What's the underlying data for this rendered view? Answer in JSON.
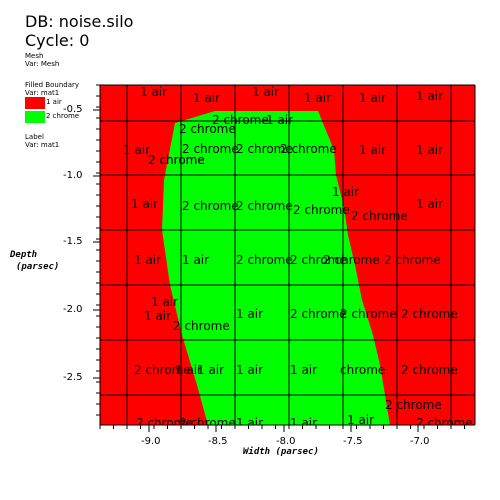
{
  "header": {
    "db": "DB: noise.silo",
    "cycle": "Cycle: 0"
  },
  "legend": {
    "mesh": [
      "Mesh",
      "Var: Mesh"
    ],
    "boundary": [
      "Filled Boundary",
      "Var: mat1"
    ],
    "items": [
      "1 air",
      "2 chrome"
    ],
    "label": [
      "Label",
      "Var: mat1"
    ]
  },
  "colors": {
    "air": "#ff0000",
    "chrome": "#00ff00",
    "grid": "#000000"
  },
  "axes": {
    "x_title": "Width (parsec)",
    "y_title": [
      "Depth",
      "(parsec)"
    ],
    "x_ticks": [
      "-9.0",
      "-8.5",
      "-8.0",
      "-7.5",
      "-7.0"
    ],
    "y_ticks": [
      "-0.5",
      "-1.0",
      "-1.5",
      "-2.0",
      "-2.5"
    ]
  },
  "plot_labels": [
    "1 air",
    "1 air",
    "1 air",
    "1 air",
    "1 air",
    "1 air",
    "2 chrome",
    "2 chrome",
    "1 air",
    "1 air",
    "2 chrome",
    "2 chrome",
    "2 chrome",
    "2 chrome",
    "1 air",
    "1 air",
    "2 chrome",
    "1 air",
    "1 air",
    "2 chrome",
    "2 chrome",
    "2 chrome",
    "2 chrome",
    "1 air",
    "1 air",
    "1 air",
    "2 chrome",
    "2 chrome",
    "2 chrome",
    "2 chrome",
    "1 air",
    "1 air",
    "2 chrome",
    "1 air",
    "2 chrome",
    "2 chrome",
    "2 chrome",
    "2 chrome",
    "1 air",
    "1 air",
    "1 air",
    "1 air",
    "chrome",
    "2 chrome",
    "2 chrome",
    "2 chrome",
    "1 air",
    "1 air",
    "1 air",
    "2 chrome",
    "2 chrome",
    "2 chrome",
    "1 air",
    "1 air"
  ]
}
